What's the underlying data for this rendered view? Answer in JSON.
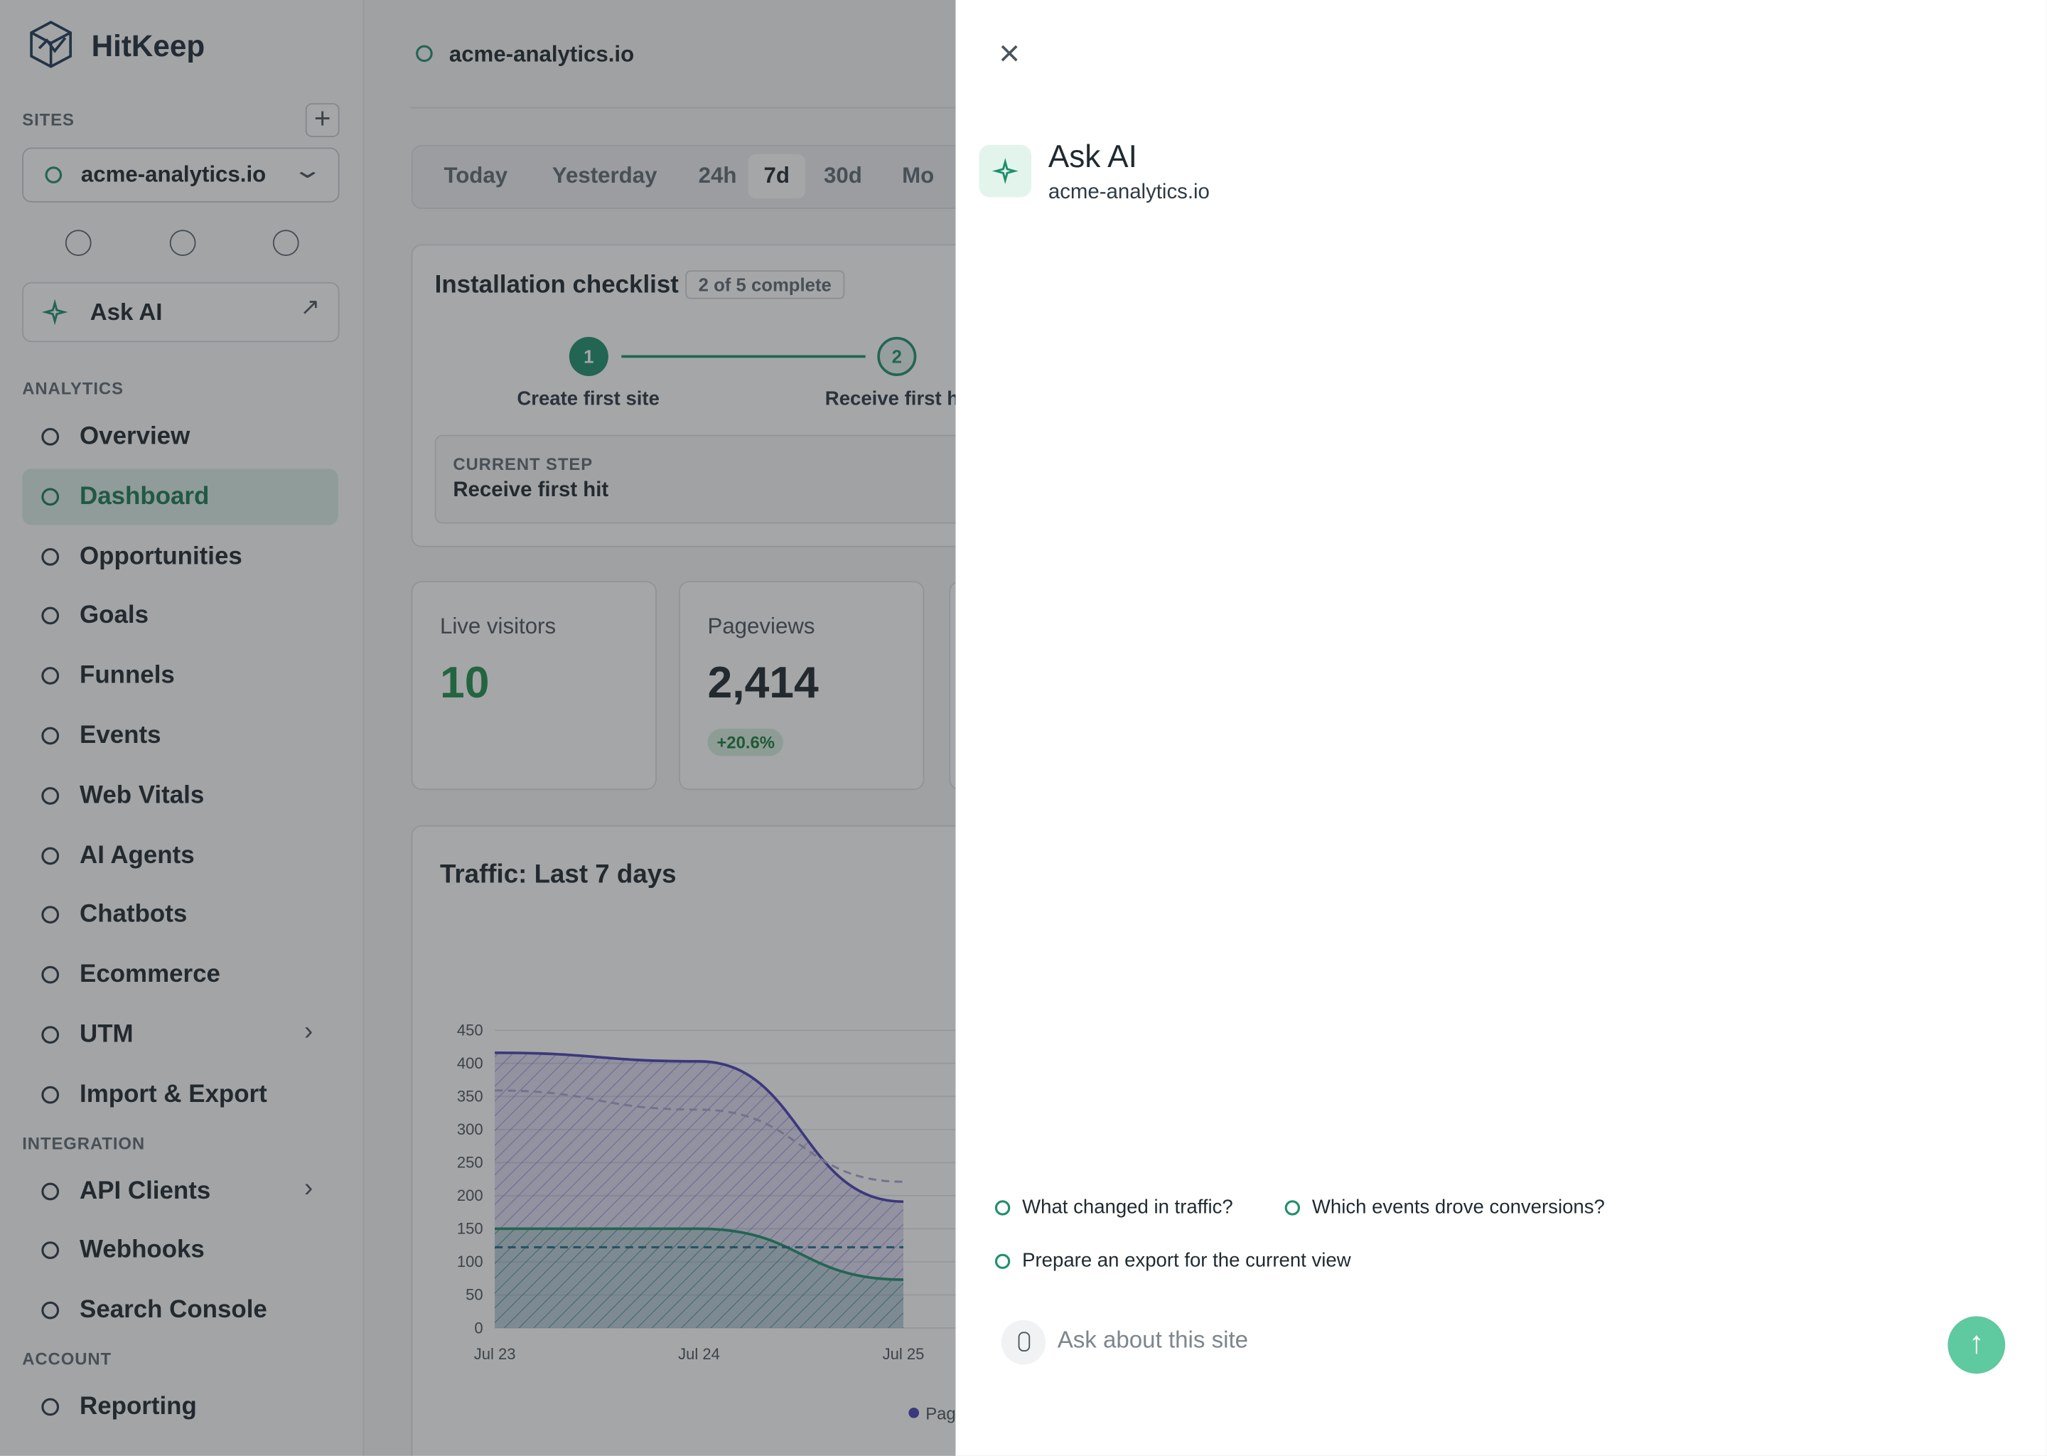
{
  "sidebar": {
    "brand": "HitKeep",
    "sites_label": "SITES",
    "site": "acme-analytics.io",
    "ask_ai": "Ask AI",
    "sections": [
      {
        "label": "ANALYTICS",
        "items": [
          {
            "label": "Overview"
          },
          {
            "label": "Dashboard",
            "active": true
          },
          {
            "label": "Opportunities"
          },
          {
            "label": "Goals"
          },
          {
            "label": "Funnels"
          },
          {
            "label": "Events"
          },
          {
            "label": "Web Vitals"
          },
          {
            "label": "AI Agents"
          },
          {
            "label": "Chatbots"
          },
          {
            "label": "Ecommerce"
          },
          {
            "label": "UTM",
            "has_submenu": true
          },
          {
            "label": "Import & Export"
          }
        ]
      },
      {
        "label": "INTEGRATION",
        "items": [
          {
            "label": "API Clients",
            "has_submenu": true
          },
          {
            "label": "Webhooks"
          },
          {
            "label": "Search Console"
          }
        ]
      },
      {
        "label": "ACCOUNT",
        "items": [
          {
            "label": "Reporting"
          }
        ]
      }
    ]
  },
  "header": {
    "site": "acme-analytics.io"
  },
  "tabs": {
    "items": [
      "Today",
      "Yesterday",
      "24h",
      "7d",
      "30d",
      "Mo"
    ],
    "active": 3
  },
  "checklist": {
    "title": "Installation checklist",
    "badge": "2 of 5 complete",
    "steps": [
      {
        "number": 1,
        "label": "Create first site",
        "done": true
      },
      {
        "number": 2,
        "label": "Receive first h"
      }
    ],
    "current_label": "CURRENT STEP",
    "current_value": "Receive first hit"
  },
  "stats": [
    {
      "label": "Live visitors",
      "value": "10"
    },
    {
      "label": "Pageviews",
      "value": "2,414",
      "change": "+20.6%"
    }
  ],
  "chart_data": {
    "type": "line",
    "title": "Traffic: Last 7 days",
    "categories": [
      "Jul 23",
      "Jul 24",
      "Jul 25"
    ],
    "ylim": [
      0,
      450
    ],
    "yticks": [
      0,
      50,
      100,
      150,
      200,
      250,
      300,
      350,
      400,
      450
    ],
    "series": [
      {
        "color": "#4a43b5",
        "values": [
          416,
          403,
          191
        ]
      },
      {
        "color": "#a9a6cf",
        "dashed": true,
        "values": [
          359,
          330,
          221
        ]
      },
      {
        "color": "#1f8f6d",
        "values": [
          150,
          150,
          73
        ]
      },
      {
        "color": "#1f6f86",
        "dashed": true,
        "values": [
          122,
          122,
          122
        ]
      }
    ],
    "legend": "Pag"
  },
  "panel": {
    "title": "Ask AI",
    "subtitle": "acme-analytics.io",
    "suggestions": [
      "What changed in traffic?",
      "Which events drove conversions?",
      "Prepare an export for the current view"
    ],
    "input_placeholder": "Ask about this site"
  }
}
